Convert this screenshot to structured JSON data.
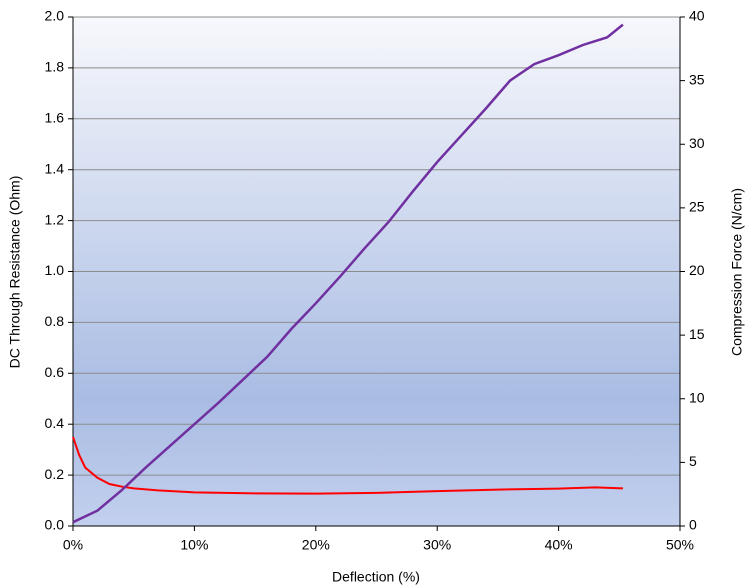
{
  "chart_data": {
    "type": "line",
    "x_label": "Deflection (%)",
    "y_label": "DC Through Resistance (Ohm)",
    "y2_label": "Compression Force (N/cm)",
    "xlim": [
      0,
      50
    ],
    "xticks": [
      {
        "value": 0,
        "label": "0%"
      },
      {
        "value": 10,
        "label": "10%"
      },
      {
        "value": 20,
        "label": "20%"
      },
      {
        "value": 30,
        "label": "30%"
      },
      {
        "value": 40,
        "label": "40%"
      },
      {
        "value": 50,
        "label": "50%"
      }
    ],
    "ylim": [
      0,
      2
    ],
    "yticks": [
      {
        "value": 0,
        "label": "0.0"
      },
      0.2,
      0.4,
      0.6,
      0.8,
      {
        "value": 1,
        "label": "1.0"
      },
      1.2,
      1.4,
      1.6,
      1.8,
      {
        "value": 2,
        "label": "2.0"
      }
    ],
    "y2lim": [
      0,
      40
    ],
    "y2ticks": [
      0,
      5,
      10,
      15,
      20,
      25,
      30,
      35,
      40
    ],
    "grid": true,
    "series": [
      {
        "color": "#ff0000",
        "axis": "y",
        "x": [
          0,
          0.5,
          1,
          2,
          3,
          4,
          5,
          7,
          10,
          15,
          20,
          25,
          30,
          35,
          40,
          43,
          45.3
        ],
        "values": [
          0.35,
          0.28,
          0.23,
          0.19,
          0.165,
          0.155,
          0.148,
          0.14,
          0.132,
          0.128,
          0.127,
          0.13,
          0.137,
          0.143,
          0.147,
          0.152,
          0.148
        ]
      },
      {
        "color": "#7030a0",
        "axis": "y2",
        "x": [
          0,
          2,
          4,
          6,
          8,
          10,
          12,
          14,
          16,
          18,
          20,
          22,
          24,
          26,
          28,
          30,
          32,
          34,
          36,
          38,
          40,
          42,
          44,
          45.3
        ],
        "values": [
          0.3,
          1.2,
          2.8,
          4.6,
          6.3,
          8.0,
          9.7,
          11.5,
          13.3,
          15.5,
          17.5,
          19.6,
          21.8,
          23.9,
          26.3,
          28.6,
          30.7,
          32.8,
          35.0,
          36.3,
          37.0,
          37.8,
          38.4,
          39.4
        ]
      }
    ]
  }
}
